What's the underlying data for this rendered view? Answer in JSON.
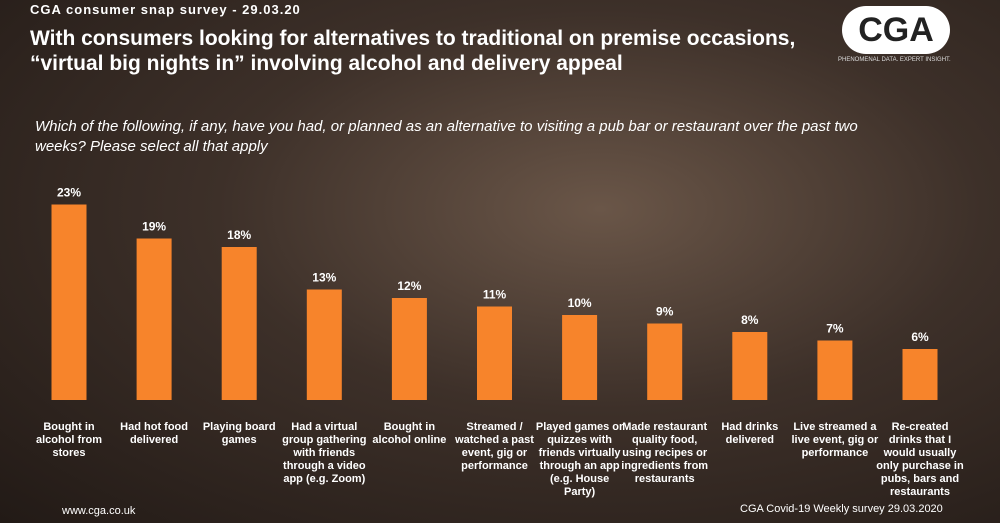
{
  "header": "CGA consumer snap survey - 29.03.20",
  "logo": {
    "text": "CGA",
    "tagline": "PHENOMENAL DATA. EXPERT INSIGHT."
  },
  "footer": {
    "left": "www.cga.co.uk",
    "right": "CGA Covid-19 Weekly survey 29.03.2020"
  },
  "chart_data": {
    "type": "bar",
    "title": "With consumers looking for alternatives to traditional on premise occasions, “virtual big nights in” involving alcohol and delivery appeal",
    "subtitle": "Which of the following, if any, have you had, or planned as an alternative to visiting a pub bar or restaurant over the past two weeks? Please select all that apply",
    "categories": [
      "Bought in alcohol from stores",
      "Had hot food delivered",
      "Playing board games",
      "Had a virtual group gathering with friends through a video app (e.g. Zoom)",
      "Bought in alcohol online",
      "Streamed / watched a past event, gig or performance",
      "Played games or quizzes with friends virtually through an app (e.g. House Party)",
      "Made restaurant quality food, using recipes or ingredients from restaurants",
      "Had drinks delivered",
      "Live streamed a live event, gig or performance",
      "Re-created drinks that I would usually only purchase in pubs, bars and restaurants"
    ],
    "values": [
      23,
      19,
      18,
      13,
      12,
      11,
      10,
      9,
      8,
      7,
      6
    ],
    "value_labels": [
      "23%",
      "19%",
      "18%",
      "13%",
      "12%",
      "11%",
      "10%",
      "9%",
      "8%",
      "7%",
      "6%"
    ],
    "color": "#f7842b"
  }
}
